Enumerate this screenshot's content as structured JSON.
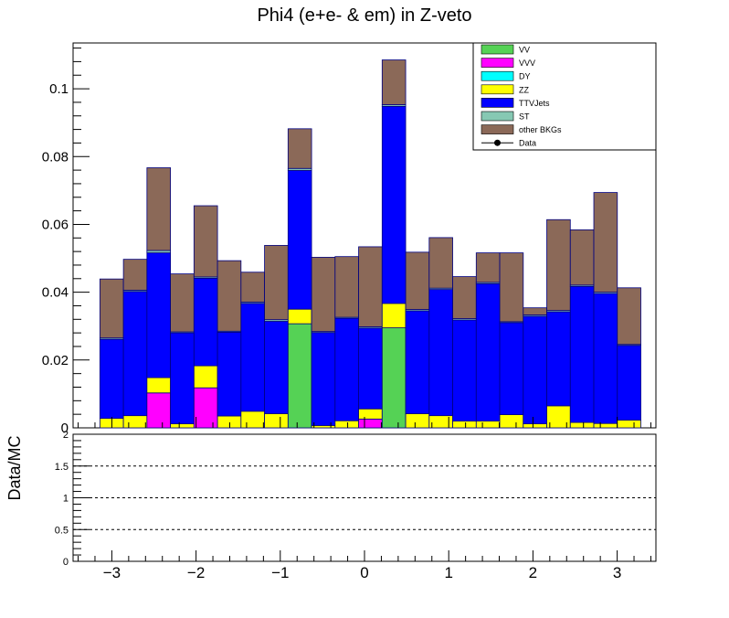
{
  "chart_data": {
    "type": "bar",
    "stacked": true,
    "title": "Phi4 (e+e- & em) in Z-veto",
    "xlabel": "",
    "ylabel": "",
    "ratio_ylabel": "Data/MC",
    "xlim": [
      -3.46,
      3.46
    ],
    "ylim": [
      0,
      0.1135
    ],
    "ratio_ylim": [
      0,
      2
    ],
    "xticks": [
      -3,
      -2,
      -1,
      0,
      1,
      2,
      3
    ],
    "xtick_labels": [
      "−3",
      "−2",
      "−1",
      "0",
      "1",
      "2",
      "3"
    ],
    "yticks": [
      0,
      0.02,
      0.04,
      0.06,
      0.08,
      0.1
    ],
    "ytick_labels": [
      "0",
      "0.02",
      "0.04",
      "0.06",
      "0.08",
      "0.1"
    ],
    "ratio_yticks": [
      0,
      0.5,
      1,
      1.5,
      2
    ],
    "ratio_ytick_labels": [
      "0",
      "0.5",
      "1",
      "1.5",
      "2"
    ],
    "ratio_dashed_lines": [
      0.5,
      1,
      1.5
    ],
    "grid": false,
    "legend_position": "top-right",
    "bin_edges": [
      -3.1416,
      -2.8623,
      -2.5831,
      -2.3038,
      -2.0246,
      -1.7453,
      -1.4661,
      -1.1868,
      -0.9076,
      -0.6283,
      -0.3491,
      -0.0698,
      0.2094,
      0.4887,
      0.7679,
      1.0472,
      1.3265,
      1.6057,
      1.885,
      2.1642,
      2.4435,
      2.7227,
      3.002,
      3.2812
    ],
    "series": [
      {
        "name": "VV",
        "color": "#55d255",
        "values": [
          0,
          0,
          0,
          0,
          0,
          0,
          0,
          0,
          0.0307,
          0,
          0,
          0,
          0.0295,
          0,
          0,
          0,
          0,
          0,
          0,
          0,
          0,
          0,
          0
        ]
      },
      {
        "name": "VVV",
        "color": "#ff00ff",
        "values": [
          0,
          0,
          0.0103,
          0,
          0.0118,
          0,
          0,
          0,
          0,
          0,
          0,
          0.0026,
          0,
          0,
          0,
          0,
          0,
          0,
          0,
          0,
          0,
          0,
          0
        ]
      },
      {
        "name": "DY",
        "color": "#00ffff",
        "values": [
          0,
          0,
          0,
          0,
          0,
          0,
          0,
          0,
          0,
          0,
          0,
          0,
          0,
          0,
          0,
          0,
          0,
          0,
          0,
          0,
          0,
          0,
          0
        ]
      },
      {
        "name": "ZZ",
        "color": "#ffff00",
        "values": [
          0.0028,
          0.0036,
          0.0045,
          0.0012,
          0.0065,
          0.0035,
          0.0049,
          0.0042,
          0.0043,
          0.0007,
          0.0021,
          0.003,
          0.0072,
          0.0042,
          0.0036,
          0.002,
          0.002,
          0.0039,
          0.0012,
          0.0065,
          0.0016,
          0.0013,
          0.0023
        ]
      },
      {
        "name": "TTVJets",
        "color": "#0000ff",
        "values": [
          0.0233,
          0.0366,
          0.0368,
          0.0268,
          0.0258,
          0.0247,
          0.0318,
          0.0272,
          0.0409,
          0.0274,
          0.0302,
          0.0238,
          0.0581,
          0.0303,
          0.0372,
          0.0298,
          0.0405,
          0.0271,
          0.0317,
          0.0277,
          0.0401,
          0.0383,
          0.022
        ]
      },
      {
        "name": "ST",
        "color": "#86c8b3",
        "values": [
          0.0004,
          0.0004,
          0.0007,
          0.0003,
          0.0004,
          0.0003,
          0.0004,
          0.0005,
          0.0006,
          0.0003,
          0.0003,
          0.0004,
          0.0005,
          0.0004,
          0.0004,
          0.0004,
          0.0004,
          0.0003,
          0.0004,
          0.0004,
          0.0004,
          0.0004,
          0.0003
        ]
      },
      {
        "name": "other BKGs",
        "color": "#8b6958",
        "values": [
          0.0174,
          0.0091,
          0.0244,
          0.0171,
          0.021,
          0.0208,
          0.0088,
          0.0219,
          0.0117,
          0.0219,
          0.0179,
          0.0236,
          0.0132,
          0.0169,
          0.0149,
          0.0124,
          0.0087,
          0.0203,
          0.0021,
          0.0268,
          0.0163,
          0.0294,
          0.0167
        ]
      },
      {
        "name": "Data",
        "color": "#000000",
        "values": []
      }
    ]
  }
}
